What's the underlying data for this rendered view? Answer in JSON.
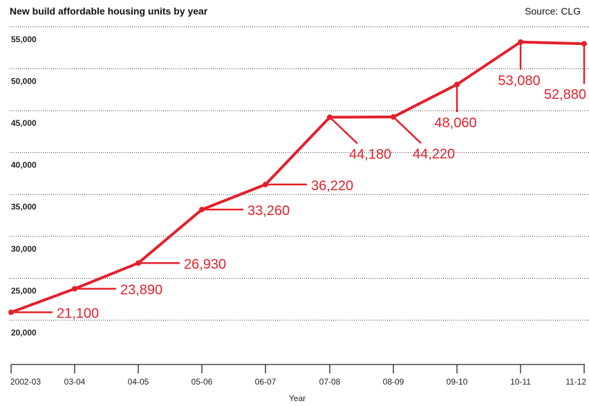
{
  "chart_data": {
    "type": "line",
    "title": "New build affordable housing units by year",
    "source": "Source: CLG",
    "xlabel": "Year",
    "ylabel": "",
    "categories": [
      "2002-03",
      "03-04",
      "04-05",
      "05-06",
      "06-07",
      "07-08",
      "08-09",
      "09-10",
      "10-11",
      "11-12"
    ],
    "series": [
      {
        "values": [
          21100,
          23890,
          26930,
          33260,
          36220,
          44180,
          44220,
          48060,
          53080,
          52880
        ],
        "labels": [
          "21,100",
          "23,890",
          "26,930",
          "33,260",
          "36,220",
          "44,180",
          "44,220",
          "48,060",
          "53,080",
          "52,880"
        ]
      }
    ],
    "yticks": [
      20000,
      25000,
      30000,
      35000,
      40000,
      45000,
      50000,
      55000
    ],
    "ytick_labels": [
      "20,000",
      "25,000",
      "30,000",
      "35,000",
      "40,000",
      "45,000",
      "50,000",
      "55,000"
    ],
    "ylim": [
      20000,
      55000
    ],
    "grid": "horizontal dotted",
    "line_color": "#e3202b"
  }
}
